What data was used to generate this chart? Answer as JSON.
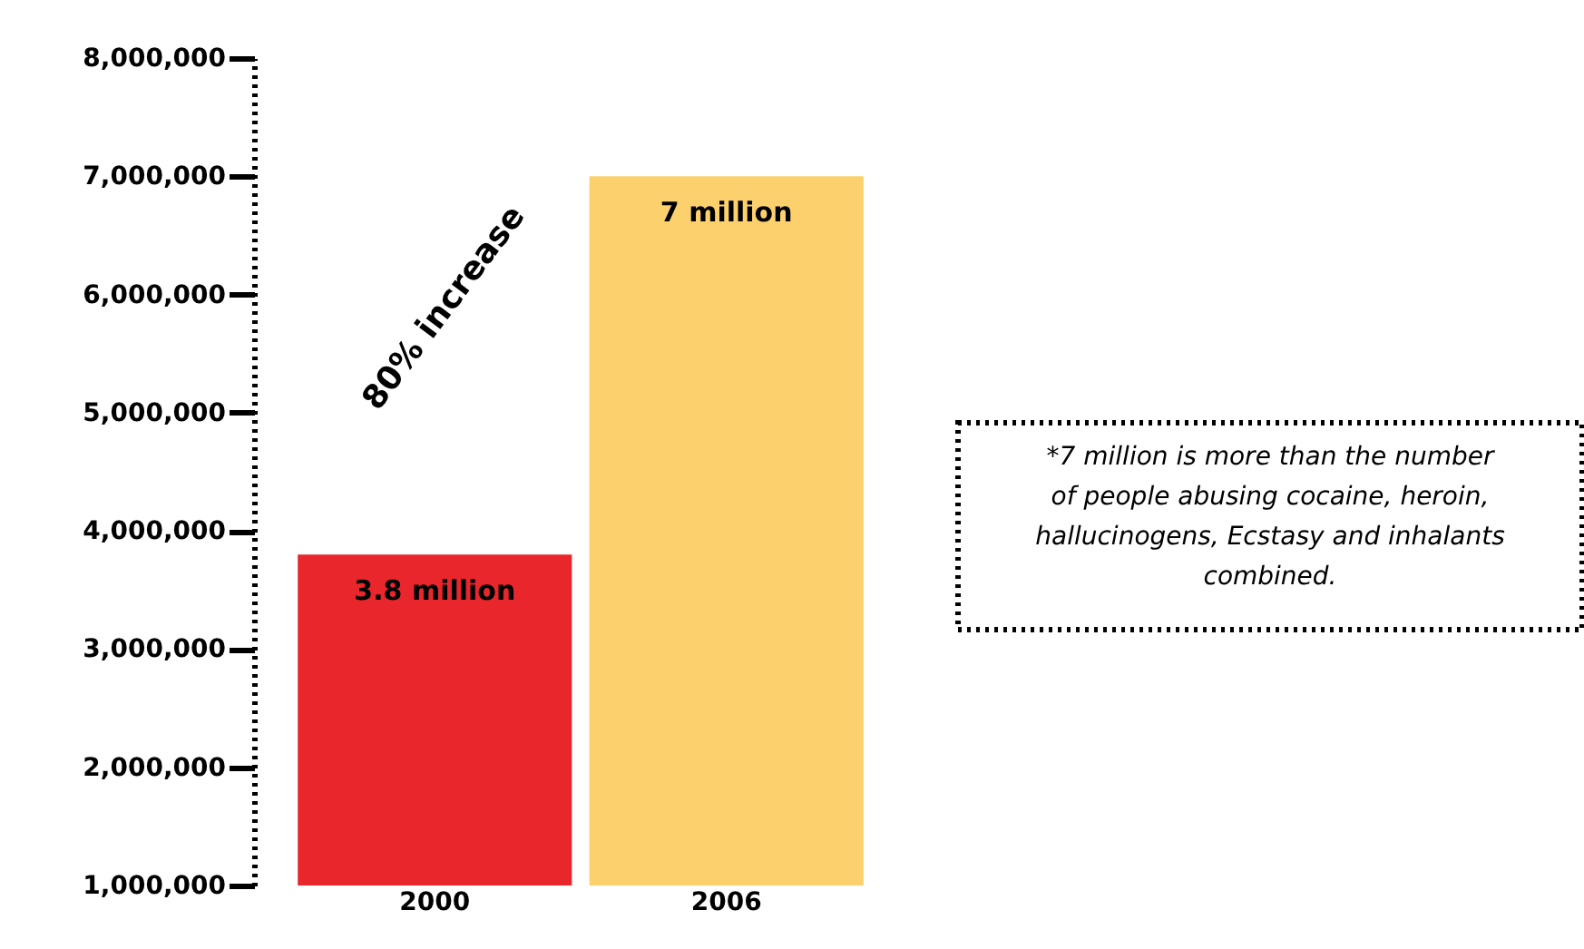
{
  "chart_data": {
    "type": "bar",
    "categories": [
      "2000",
      "2006"
    ],
    "values": [
      3800000,
      7000000
    ],
    "colors": [
      "#e8262b",
      "#fdd06e"
    ],
    "value_labels": [
      "3.8 million",
      "7 million"
    ],
    "ylim": [
      1000000,
      8000000
    ],
    "yticks": [
      {
        "value": 1000000,
        "label": "1,000,000"
      },
      {
        "value": 2000000,
        "label": "2,000,000"
      },
      {
        "value": 3000000,
        "label": "3,000,000"
      },
      {
        "value": 4000000,
        "label": "4,000,000"
      },
      {
        "value": 5000000,
        "label": "5,000,000"
      },
      {
        "value": 6000000,
        "label": "6,000,000"
      },
      {
        "value": 7000000,
        "label": "7,000,000"
      },
      {
        "value": 8000000,
        "label": "8,000,000"
      }
    ],
    "grid": false,
    "annotations": [
      "80% increase",
      "*7 million is more than the number of people abusing cocaine, heroin, hallucinogens, Ecstasy and inhalants combined."
    ]
  }
}
